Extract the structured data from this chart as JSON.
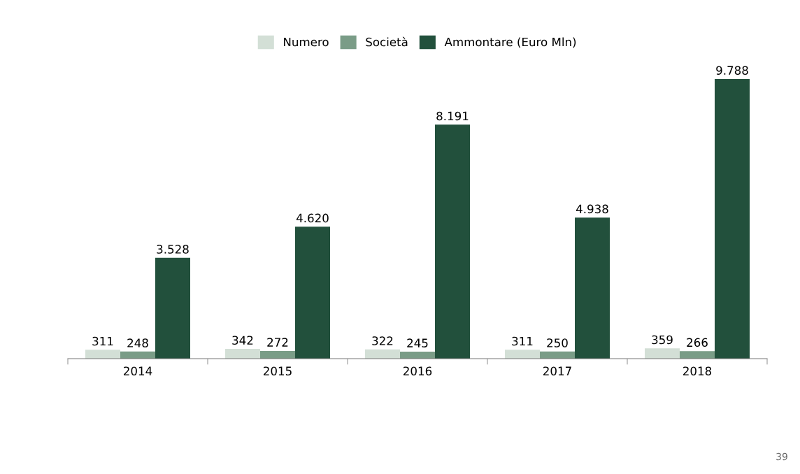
{
  "chart_data": {
    "type": "bar",
    "categories": [
      "2014",
      "2015",
      "2016",
      "2017",
      "2018"
    ],
    "series": [
      {
        "name": "Numero",
        "color": "#d3dfd6",
        "values": [
          311,
          342,
          322,
          311,
          359
        ],
        "value_labels": [
          "311",
          "342",
          "322",
          "311",
          "359"
        ]
      },
      {
        "name": "Società",
        "color": "#7a9c87",
        "values": [
          248,
          272,
          245,
          250,
          266
        ],
        "value_labels": [
          "248",
          "272",
          "245",
          "250",
          "266"
        ]
      },
      {
        "name": "Ammontare (Euro Mln)",
        "color": "#22503c",
        "values": [
          3528,
          4620,
          8191,
          4938,
          9788
        ],
        "value_labels": [
          "3.528",
          "4.620",
          "8.191",
          "4.938",
          "9.788"
        ]
      }
    ],
    "legend": "top",
    "grid": false,
    "annotations": [
      "39"
    ]
  }
}
